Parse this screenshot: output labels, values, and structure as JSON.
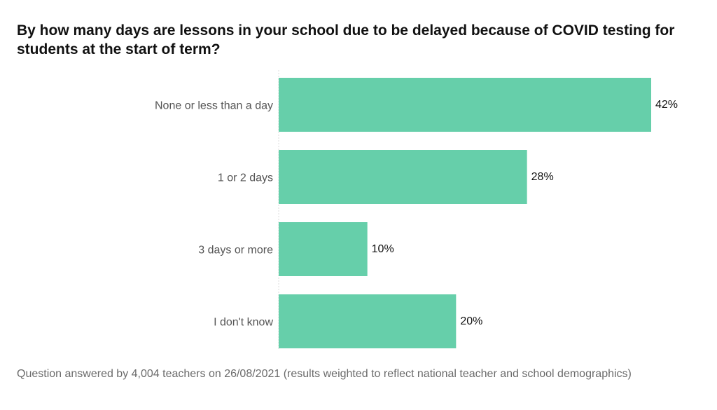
{
  "chart_data": {
    "type": "bar",
    "orientation": "horizontal",
    "title": "By how many days are lessons in your school due to be delayed because of COVID testing for students at the start of term?",
    "categories": [
      "None or less than a day",
      "1 or 2 days",
      "3 days or more",
      "I don't know"
    ],
    "values": [
      42,
      28,
      10,
      20
    ],
    "value_labels": [
      "42%",
      "28%",
      "10%",
      "20%"
    ],
    "value_unit": "%",
    "xlim": [
      0,
      50
    ],
    "grid": false,
    "legend": "none",
    "bar_color": "#66cfaa"
  },
  "footnote": "Question answered by 4,004 teachers on 26/08/2021 (results weighted to reflect national teacher and school demographics)"
}
